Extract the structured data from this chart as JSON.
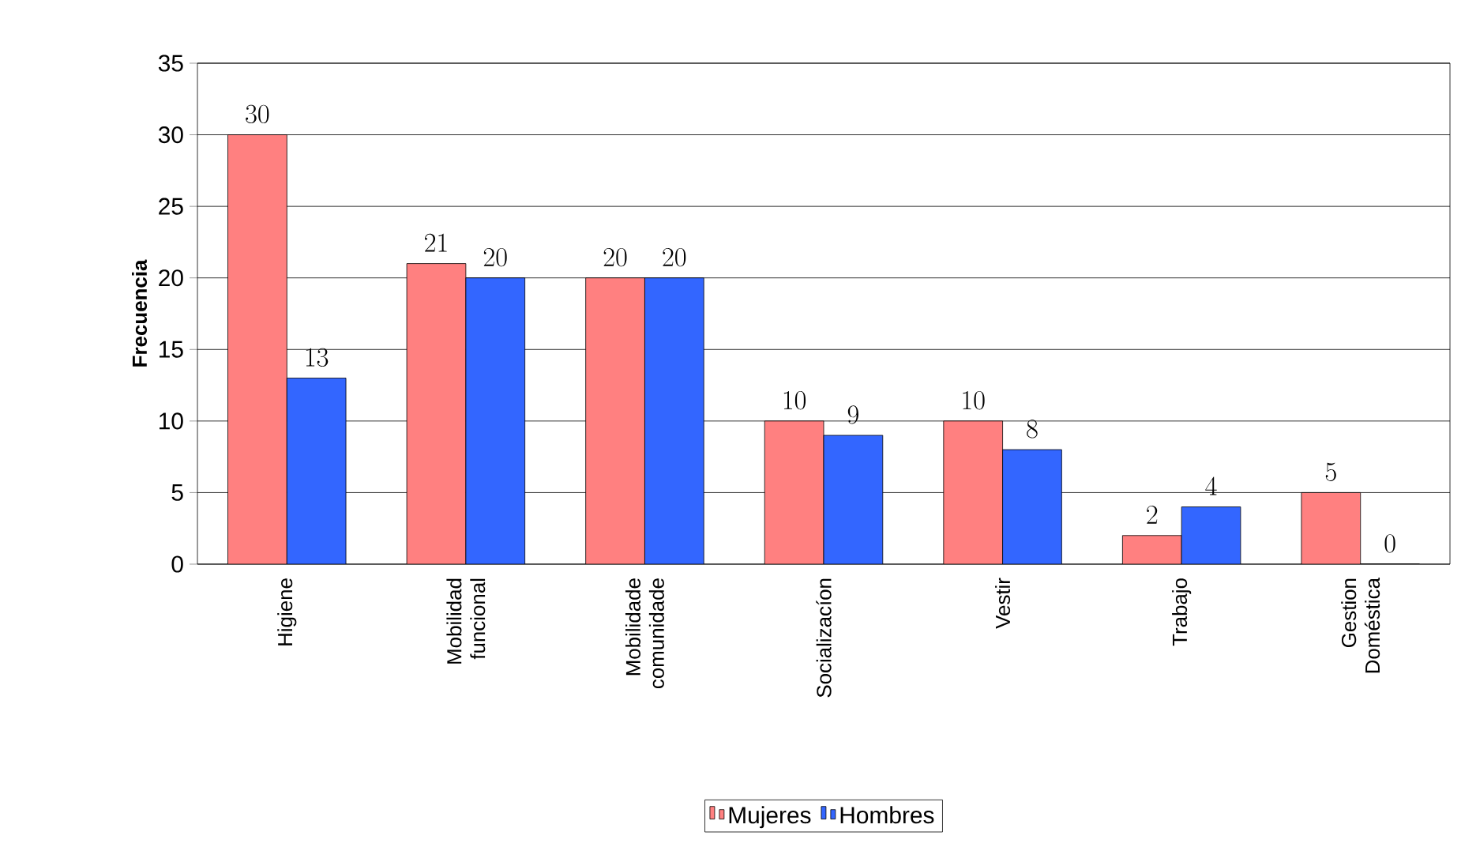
{
  "chart_data": {
    "type": "bar",
    "ylabel": "Frecuencia",
    "categories": [
      "Higiene",
      "Mobilidad funcional",
      "Mobilidade comunidade",
      "Socializacíon",
      "Vestir",
      "Trabajo",
      "Gestion Doméstica"
    ],
    "series": [
      {
        "name": "Mujeres",
        "color": "#ff8080",
        "values": [
          30,
          21,
          20,
          10,
          10,
          2,
          5
        ]
      },
      {
        "name": "Hombres",
        "color": "#3366ff",
        "values": [
          13,
          20,
          20,
          9,
          8,
          4,
          0
        ]
      }
    ],
    "ylim": [
      0,
      35
    ],
    "yticks": [
      0,
      5,
      10,
      15,
      20,
      25,
      30,
      35
    ],
    "grid": "y",
    "legend": "bottom",
    "data_labels": true
  }
}
